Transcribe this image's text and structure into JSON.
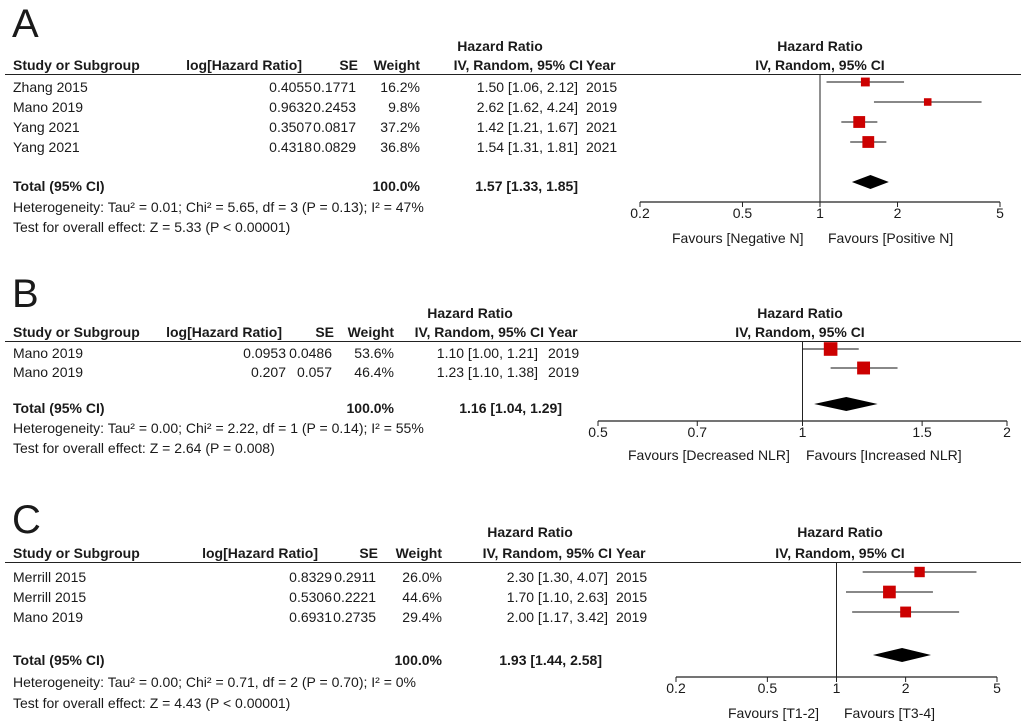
{
  "chart_data": [
    {
      "panel": "A",
      "type": "forest",
      "header": {
        "hr_group": "Hazard Ratio",
        "study": "Study or Subgroup",
        "loghr": "log[Hazard Ratio]",
        "se": "SE",
        "weight": "Weight",
        "ci": "IV, Random, 95% CI",
        "year": "Year",
        "plot_title": "Hazard Ratio",
        "plot_subtitle": "IV, Random, 95% CI"
      },
      "studies": [
        {
          "name": "Zhang 2015",
          "loghr": "0.4055",
          "se": "0.1771",
          "weight_label": "16.2%",
          "ci_label": "1.50 [1.06, 2.12]",
          "year": "2015",
          "hr": 1.5,
          "lo": 1.06,
          "hi": 2.12,
          "weight": 16.2
        },
        {
          "name": "Mano 2019",
          "loghr": "0.9632",
          "se": "0.2453",
          "weight_label": "9.8%",
          "ci_label": "2.62 [1.62, 4.24]",
          "year": "2019",
          "hr": 2.62,
          "lo": 1.62,
          "hi": 4.24,
          "weight": 9.8
        },
        {
          "name": "Yang 2021",
          "loghr": "0.3507",
          "se": "0.0817",
          "weight_label": "37.2%",
          "ci_label": "1.42 [1.21, 1.67]",
          "year": "2021",
          "hr": 1.42,
          "lo": 1.21,
          "hi": 1.67,
          "weight": 37.2
        },
        {
          "name": "Yang 2021",
          "loghr": "0.4318",
          "se": "0.0829",
          "weight_label": "36.8%",
          "ci_label": "1.54 [1.31, 1.81]",
          "year": "2021",
          "hr": 1.54,
          "lo": 1.31,
          "hi": 1.81,
          "weight": 36.8
        }
      ],
      "total": {
        "label": "Total (95% CI)",
        "weight_label": "100.0%",
        "ci_label": "1.57 [1.33, 1.85]",
        "hr": 1.57,
        "lo": 1.33,
        "hi": 1.85
      },
      "heterogeneity": "Heterogeneity: Tau² = 0.01; Chi² = 5.65, df = 3 (P = 0.13); I² = 47%",
      "overall": "Test for overall effect: Z = 5.33 (P < 0.00001)",
      "axis": {
        "scale": "log",
        "range": [
          0.2,
          5
        ],
        "ticks": [
          0.2,
          0.5,
          1,
          2,
          5
        ],
        "tick_labels": [
          "0.2",
          "0.5",
          "1",
          "2",
          "5"
        ]
      },
      "favours_left": "Favours [Negative N]",
      "favours_right": "Favours [Positive N]"
    },
    {
      "panel": "B",
      "type": "forest",
      "header": {
        "hr_group": "Hazard Ratio",
        "study": "Study or Subgroup",
        "loghr": "log[Hazard Ratio]",
        "se": "SE",
        "weight": "Weight",
        "ci": "IV, Random, 95% CI",
        "year": "Year",
        "plot_title": "Hazard Ratio",
        "plot_subtitle": "IV, Random, 95% CI"
      },
      "studies": [
        {
          "name": "Mano 2019",
          "loghr": "0.0953",
          "se": "0.0486",
          "weight_label": "53.6%",
          "ci_label": "1.10 [1.00, 1.21]",
          "year": "2019",
          "hr": 1.1,
          "lo": 1.0,
          "hi": 1.21,
          "weight": 53.6
        },
        {
          "name": "Mano 2019",
          "loghr": "0.207",
          "se": "0.057",
          "weight_label": "46.4%",
          "ci_label": "1.23 [1.10, 1.38]",
          "year": "2019",
          "hr": 1.23,
          "lo": 1.1,
          "hi": 1.38,
          "weight": 46.4
        }
      ],
      "total": {
        "label": "Total (95% CI)",
        "weight_label": "100.0%",
        "ci_label": "1.16 [1.04, 1.29]",
        "hr": 1.16,
        "lo": 1.04,
        "hi": 1.29
      },
      "heterogeneity": "Heterogeneity: Tau² = 0.00; Chi² = 2.22, df = 1 (P = 0.14); I² = 55%",
      "overall": "Test for overall effect: Z = 2.64 (P = 0.008)",
      "axis": {
        "scale": "log",
        "range": [
          0.5,
          2
        ],
        "ticks": [
          0.5,
          0.7,
          1,
          1.5,
          2
        ],
        "tick_labels": [
          "0.5",
          "0.7",
          "1",
          "1.5",
          "2"
        ]
      },
      "favours_left": "Favours [Decreased NLR]",
      "favours_right": "Favours [Increased NLR]"
    },
    {
      "panel": "C",
      "type": "forest",
      "header": {
        "hr_group": "Hazard Ratio",
        "study": "Study or Subgroup",
        "loghr": "log[Hazard Ratio]",
        "se": "SE",
        "weight": "Weight",
        "ci": "IV, Random, 95% CI",
        "year": "Year",
        "plot_title": "Hazard Ratio",
        "plot_subtitle": "IV, Random, 95% CI"
      },
      "studies": [
        {
          "name": "Merrill 2015",
          "loghr": "0.8329",
          "se": "0.2911",
          "weight_label": "26.0%",
          "ci_label": "2.30 [1.30, 4.07]",
          "year": "2015",
          "hr": 2.3,
          "lo": 1.3,
          "hi": 4.07,
          "weight": 26.0
        },
        {
          "name": "Merrill 2015",
          "loghr": "0.5306",
          "se": "0.2221",
          "weight_label": "44.6%",
          "ci_label": "1.70 [1.10, 2.63]",
          "year": "2015",
          "hr": 1.7,
          "lo": 1.1,
          "hi": 2.63,
          "weight": 44.6
        },
        {
          "name": "Mano 2019",
          "loghr": "0.6931",
          "se": "0.2735",
          "weight_label": "29.4%",
          "ci_label": "2.00 [1.17, 3.42]",
          "year": "2019",
          "hr": 2.0,
          "lo": 1.17,
          "hi": 3.42,
          "weight": 29.4
        }
      ],
      "total": {
        "label": "Total (95% CI)",
        "weight_label": "100.0%",
        "ci_label": "1.93 [1.44, 2.58]",
        "hr": 1.93,
        "lo": 1.44,
        "hi": 2.58
      },
      "heterogeneity": "Heterogeneity: Tau² = 0.00; Chi² = 0.71, df = 2 (P = 0.70); I² = 0%",
      "overall": "Test for overall effect: Z = 4.43 (P < 0.00001)",
      "axis": {
        "scale": "log",
        "range": [
          0.2,
          5
        ],
        "ticks": [
          0.2,
          0.5,
          1,
          2,
          5
        ],
        "tick_labels": [
          "0.2",
          "0.5",
          "1",
          "2",
          "5"
        ]
      },
      "favours_left": "Favours [T1-2]",
      "favours_right": "Favours [T3-4]"
    }
  ],
  "colors": {
    "marker": "#cc0000",
    "diamond": "#000000",
    "text": "#1a1a1a"
  }
}
